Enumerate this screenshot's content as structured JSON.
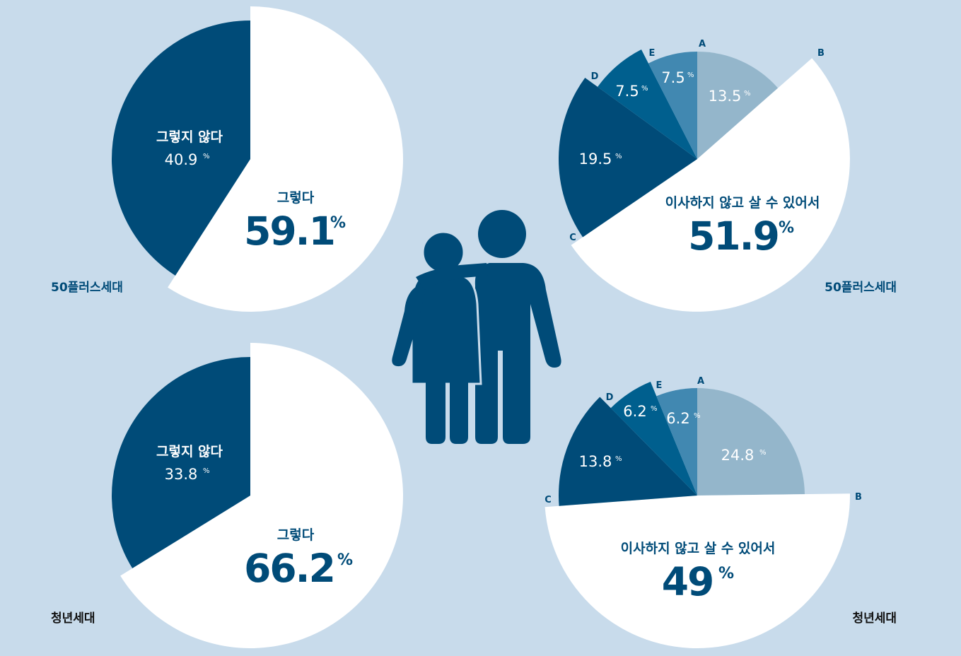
{
  "colors": {
    "background": "#c8dbeb",
    "navy": "#004b78",
    "white": "#ffffff",
    "shade_a": "#94b6cb",
    "shade_e": "#4188b1",
    "shade_d": "#005f8e",
    "shade_c": "#004b78"
  },
  "illustration": {
    "icon": "elderly-couple-icon"
  },
  "chart_data": [
    {
      "type": "pie",
      "group_label": "50플러스세대",
      "slices": [
        {
          "name": "그렇다",
          "value": 59.1,
          "value_text": "59.1",
          "unit": "%"
        },
        {
          "name": "그렇지 않다",
          "value": 40.9,
          "value_text": "40.9",
          "unit": "%"
        }
      ]
    },
    {
      "type": "pie",
      "group_label": "청년세대",
      "slices": [
        {
          "name": "그렇다",
          "value": 66.2,
          "value_text": "66.2",
          "unit": "%"
        },
        {
          "name": "그렇지 않다",
          "value": 33.8,
          "value_text": "33.8",
          "unit": "%"
        }
      ]
    },
    {
      "type": "pie",
      "group_label": "50플러스세대",
      "slices": [
        {
          "letter": "A",
          "value": 13.5,
          "value_text": "13.5",
          "unit": "%"
        },
        {
          "letter": "B",
          "name": "이사하지 않고 살 수 있어서",
          "value": 51.9,
          "value_text": "51.9",
          "unit": "%"
        },
        {
          "letter": "C",
          "value": 19.5,
          "value_text": "19.5",
          "unit": "%"
        },
        {
          "letter": "D",
          "value": 7.5,
          "value_text": "7.5",
          "unit": "%"
        },
        {
          "letter": "E",
          "value": 7.5,
          "value_text": "7.5",
          "unit": "%"
        }
      ]
    },
    {
      "type": "pie",
      "group_label": "청년세대",
      "slices": [
        {
          "letter": "A",
          "value": 24.8,
          "value_text": "24.8",
          "unit": "%"
        },
        {
          "letter": "B",
          "name": "이사하지 않고 살 수 있어서",
          "value": 49,
          "value_text": "49",
          "unit": "%"
        },
        {
          "letter": "C",
          "value": 13.8,
          "value_text": "13.8",
          "unit": "%"
        },
        {
          "letter": "D",
          "value": 6.2,
          "value_text": "6.2",
          "unit": "%"
        },
        {
          "letter": "E",
          "value": 6.2,
          "value_text": "6.2",
          "unit": "%"
        }
      ]
    }
  ]
}
